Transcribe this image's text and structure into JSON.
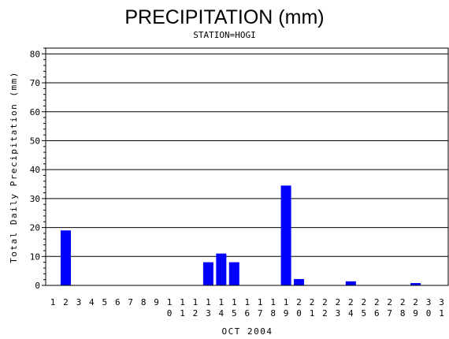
{
  "chart_data": {
    "type": "bar",
    "title": "PRECIPITATION (mm)",
    "subtitle": "STATION=HOGI",
    "ylabel": "Total Daily Precipitation (mm)",
    "xlabel": "OCT 2004",
    "ylim": [
      0,
      82
    ],
    "yticks": [
      "0",
      "10",
      "20",
      "30",
      "40",
      "50",
      "60",
      "70",
      "80"
    ],
    "grid": true,
    "bar_color": "#0000ff",
    "categories": [
      "1",
      "2",
      "3",
      "4",
      "5",
      "6",
      "7",
      "8",
      "9",
      "10",
      "11",
      "12",
      "13",
      "14",
      "15",
      "16",
      "17",
      "18",
      "19",
      "20",
      "21",
      "22",
      "23",
      "24",
      "25",
      "26",
      "27",
      "28",
      "29",
      "30",
      "31"
    ],
    "values": [
      0,
      19,
      0,
      0,
      0,
      0,
      0,
      0,
      0,
      0,
      0,
      0,
      8,
      11,
      8,
      0,
      0,
      0,
      34.5,
      2.2,
      0,
      0,
      0,
      1.4,
      0,
      0,
      0,
      0,
      0.8,
      0,
      0
    ]
  }
}
